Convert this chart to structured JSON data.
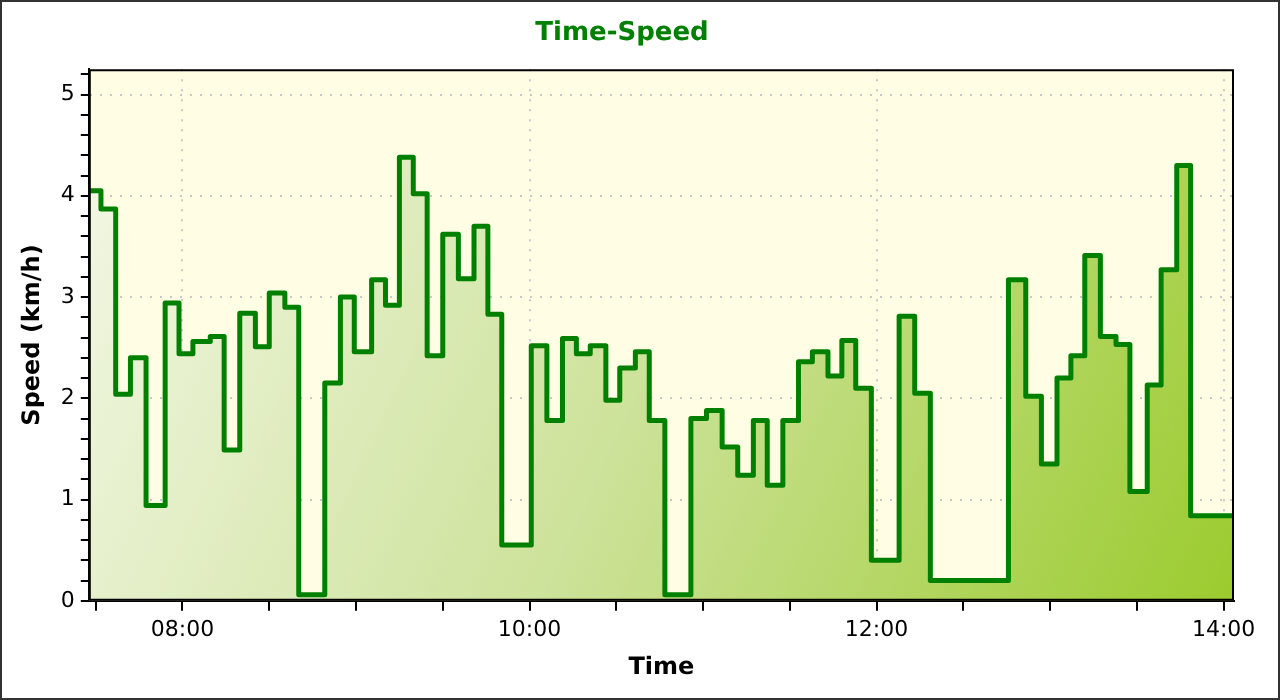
{
  "chart_data": {
    "type": "area",
    "title": "Time-Speed",
    "xlabel": "Time",
    "ylabel": "Speed (km/h)",
    "x": [
      7.46,
      7.53,
      7.53,
      7.615,
      7.615,
      7.7,
      7.7,
      7.79,
      7.79,
      7.9,
      7.9,
      7.98,
      7.98,
      8.06,
      8.06,
      8.16,
      8.16,
      8.24,
      8.24,
      8.33,
      8.33,
      8.42,
      8.42,
      8.5,
      8.5,
      8.59,
      8.59,
      8.67,
      8.67,
      8.82,
      8.82,
      8.91,
      8.91,
      8.99,
      8.99,
      9.09,
      9.09,
      9.17,
      9.17,
      9.25,
      9.25,
      9.33,
      9.33,
      9.41,
      9.41,
      9.5,
      9.5,
      9.59,
      9.59,
      9.68,
      9.68,
      9.76,
      9.76,
      9.84,
      9.84,
      10.01,
      10.01,
      10.1,
      10.1,
      10.19,
      10.19,
      10.27,
      10.27,
      10.35,
      10.35,
      10.44,
      10.44,
      10.52,
      10.52,
      10.61,
      10.61,
      10.69,
      10.69,
      10.78,
      10.78,
      10.93,
      10.93,
      11.02,
      11.02,
      11.11,
      11.11,
      11.2,
      11.2,
      11.29,
      11.29,
      11.37,
      11.37,
      11.46,
      11.46,
      11.55,
      11.55,
      11.63,
      11.63,
      11.72,
      11.72,
      11.8,
      11.8,
      11.88,
      11.88,
      11.97,
      11.97,
      12.13,
      12.13,
      12.22,
      12.22,
      12.31,
      12.31,
      12.76,
      12.76,
      12.86,
      12.86,
      12.95,
      12.95,
      13.04,
      13.04,
      13.12,
      13.12,
      13.2,
      13.2,
      13.29,
      13.29,
      13.38,
      13.38,
      13.46,
      13.46,
      13.56,
      13.56,
      13.64,
      13.64,
      13.73,
      13.73,
      13.81,
      13.81,
      14.06
    ],
    "series": [
      {
        "color": "#008000",
        "values": [
          4.05,
          4.05,
          3.87,
          3.87,
          2.04,
          2.04,
          2.4,
          2.4,
          0.94,
          0.94,
          2.94,
          2.94,
          2.44,
          2.44,
          2.56,
          2.56,
          2.61,
          2.61,
          1.49,
          1.49,
          2.84,
          2.84,
          2.51,
          2.51,
          3.04,
          3.04,
          2.9,
          2.9,
          0.06,
          0.06,
          2.15,
          2.15,
          3.0,
          3.0,
          2.46,
          2.46,
          3.17,
          3.17,
          2.92,
          2.92,
          4.38,
          4.38,
          4.02,
          4.02,
          2.42,
          2.42,
          3.62,
          3.62,
          3.18,
          3.18,
          3.7,
          3.7,
          2.83,
          2.83,
          0.55,
          0.55,
          2.52,
          2.52,
          1.78,
          1.78,
          2.59,
          2.59,
          2.44,
          2.44,
          2.52,
          2.52,
          1.98,
          1.98,
          2.3,
          2.3,
          2.46,
          2.46,
          1.78,
          1.78,
          0.06,
          0.06,
          1.8,
          1.8,
          1.88,
          1.88,
          1.52,
          1.52,
          1.24,
          1.24,
          1.78,
          1.78,
          1.14,
          1.14,
          1.78,
          1.78,
          2.36,
          2.36,
          2.46,
          2.46,
          2.22,
          2.22,
          2.57,
          2.57,
          2.1,
          2.1,
          0.4,
          0.4,
          2.81,
          2.81,
          2.05,
          2.05,
          0.2,
          0.2,
          3.17,
          3.17,
          2.02,
          2.02,
          1.35,
          1.35,
          2.2,
          2.2,
          2.42,
          2.42,
          3.41,
          3.41,
          2.61,
          2.61,
          2.53,
          2.53,
          1.08,
          1.08,
          2.13,
          2.13,
          3.27,
          3.27,
          4.3,
          4.3,
          0.84,
          0.84
        ]
      }
    ],
    "xlim": [
      7.46,
      14.06
    ],
    "xticks": [
      {
        "value": 7.5,
        "label": null
      },
      {
        "value": 8,
        "label": "08:00"
      },
      {
        "value": 8.5,
        "label": null
      },
      {
        "value": 9,
        "label": null
      },
      {
        "value": 9.5,
        "label": null
      },
      {
        "value": 10,
        "label": "10:00"
      },
      {
        "value": 10.5,
        "label": null
      },
      {
        "value": 11,
        "label": null
      },
      {
        "value": 11.5,
        "label": null
      },
      {
        "value": 12,
        "label": "12:00"
      },
      {
        "value": 12.5,
        "label": null
      },
      {
        "value": 13,
        "label": null
      },
      {
        "value": 13.5,
        "label": null
      },
      {
        "value": 14,
        "label": "14:00"
      }
    ],
    "ylim": [
      0,
      5.25
    ],
    "yticks": [
      0,
      {
        "value": 0.2,
        "label": null
      },
      {
        "value": 0.4,
        "label": null
      },
      {
        "value": 0.6,
        "label": null
      },
      {
        "value": 0.8,
        "label": null
      },
      1,
      {
        "value": 1.2,
        "label": null
      },
      {
        "value": 1.4,
        "label": null
      },
      {
        "value": 1.6,
        "label": null
      },
      {
        "value": 1.8,
        "label": null
      },
      2,
      {
        "value": 2.2,
        "label": null
      },
      {
        "value": 2.4,
        "label": null
      },
      {
        "value": 2.6,
        "label": null
      },
      {
        "value": 2.8,
        "label": null
      },
      3,
      {
        "value": 3.2,
        "label": null
      },
      {
        "value": 3.4,
        "label": null
      },
      {
        "value": 3.6,
        "label": null
      },
      {
        "value": 3.8,
        "label": null
      },
      4,
      {
        "value": 4.2,
        "label": null
      },
      {
        "value": 4.4,
        "label": null
      },
      {
        "value": 4.6,
        "label": null
      },
      {
        "value": 4.8,
        "label": null
      },
      5,
      {
        "value": 5.2,
        "label": null
      }
    ],
    "grid": true,
    "legend": false,
    "marker": "none",
    "line_style": "solid"
  }
}
